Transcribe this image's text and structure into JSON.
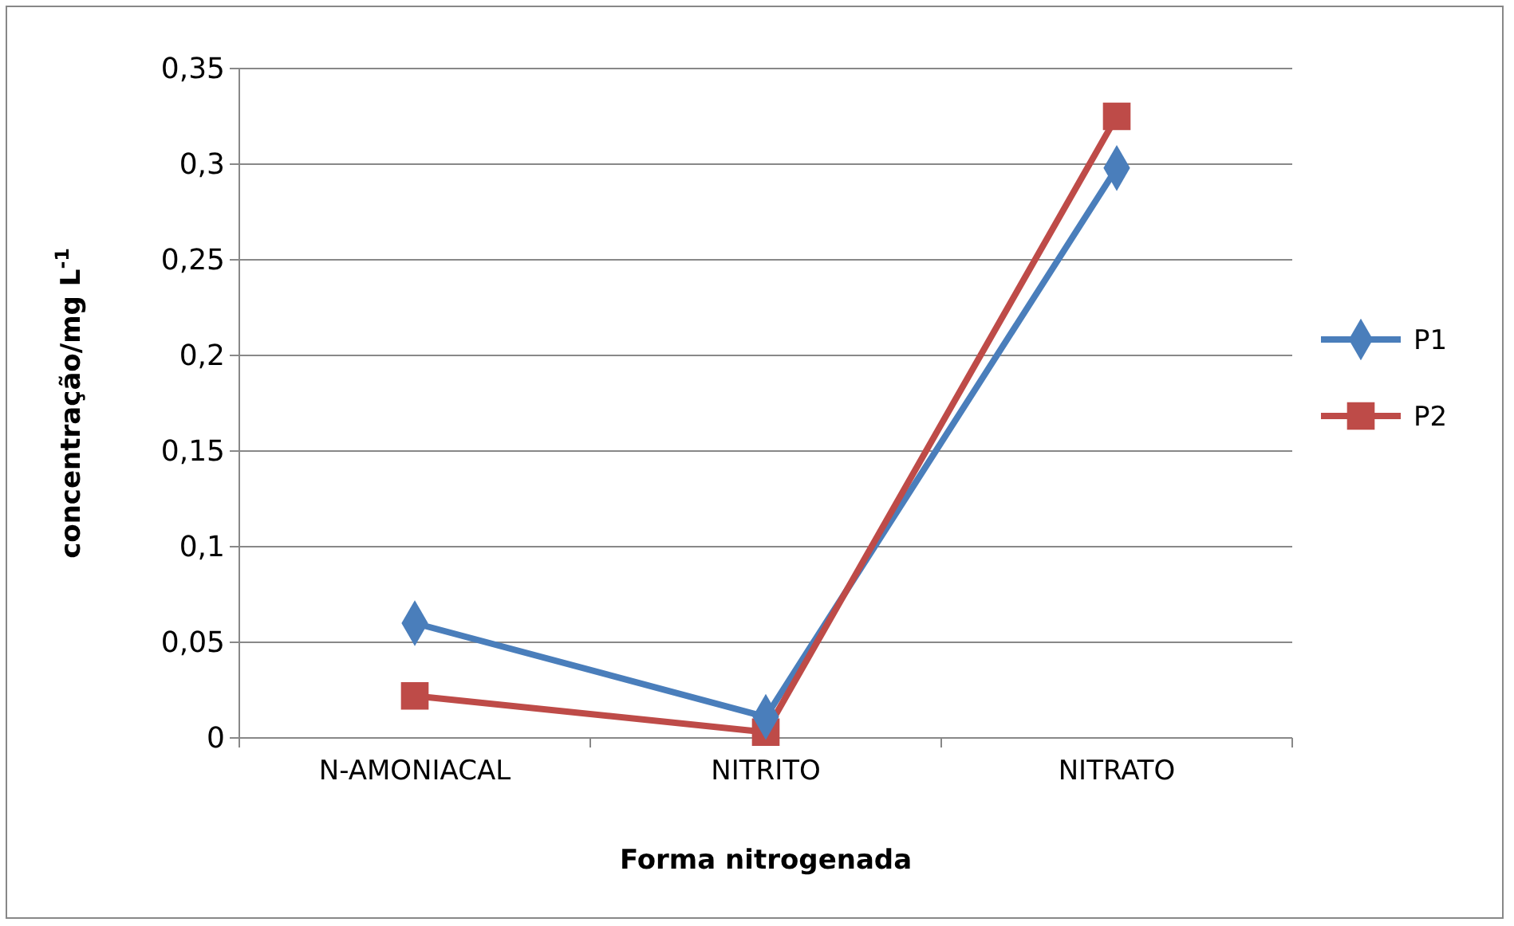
{
  "chart_data": {
    "type": "line",
    "xlabel": "Forma nitrogenada",
    "ylabel": "concentração/mg L$^{-1}$",
    "categories": [
      "N-AMONIACAL",
      "NITRITO",
      "NITRATO"
    ],
    "series": [
      {
        "name": "P1",
        "color": "#4a7ebb",
        "marker": "diamond",
        "values": [
          0.06,
          0.011,
          0.298
        ]
      },
      {
        "name": "P2",
        "color": "#be4b48",
        "marker": "square",
        "values": [
          0.022,
          0.003,
          0.325
        ]
      }
    ],
    "ylim": [
      0,
      0.35
    ],
    "yticks": [
      {
        "value": 0,
        "label": "0"
      },
      {
        "value": 0.05,
        "label": "0,05"
      },
      {
        "value": 0.1,
        "label": "0,1"
      },
      {
        "value": 0.15,
        "label": "0,15"
      },
      {
        "value": 0.2,
        "label": "0,2"
      },
      {
        "value": 0.25,
        "label": "0,25"
      },
      {
        "value": 0.3,
        "label": "0,3"
      },
      {
        "value": 0.35,
        "label": "0,35"
      }
    ],
    "grid": "y",
    "legend": "right"
  }
}
